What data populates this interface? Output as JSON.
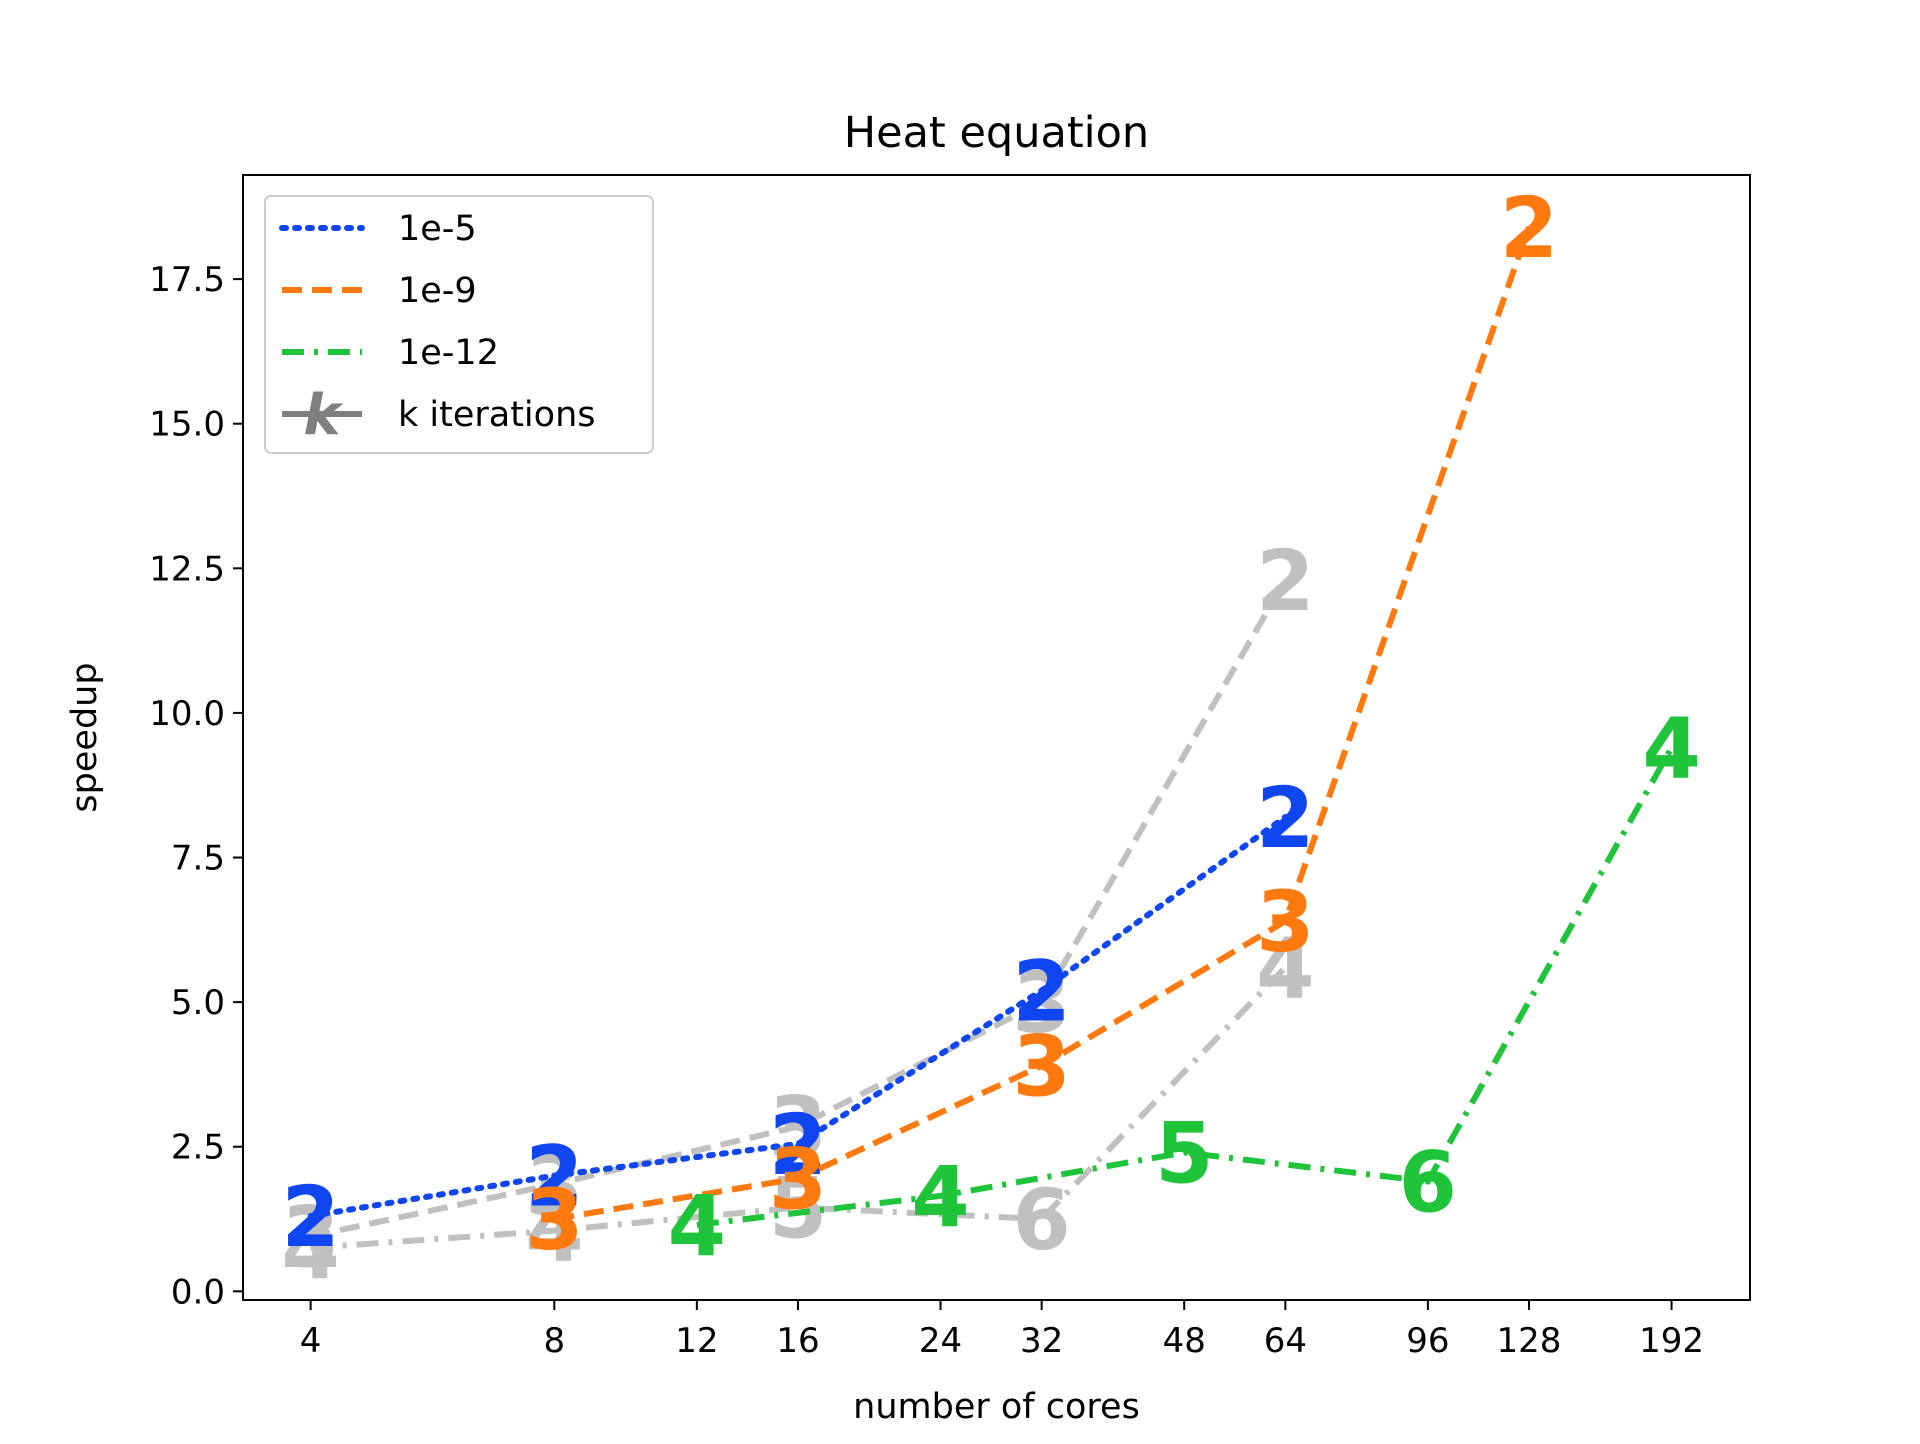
{
  "chart_data": {
    "type": "line",
    "title": "Heat equation",
    "xlabel": "number of cores",
    "ylabel": "speedup",
    "x_scale": "log2",
    "xlim": [
      3.3,
      240
    ],
    "ylim": [
      -0.15,
      19.3
    ],
    "x_ticks": [
      4,
      8,
      12,
      16,
      24,
      32,
      48,
      64,
      96,
      128,
      192
    ],
    "y_ticks": [
      0.0,
      2.5,
      5.0,
      7.5,
      10.0,
      12.5,
      15.0,
      17.5
    ],
    "y_tick_labels": [
      "0.0",
      "2.5",
      "5.0",
      "7.5",
      "10.0",
      "12.5",
      "15.0",
      "17.5"
    ],
    "grid": false,
    "legend_position": "top-left",
    "legend": [
      {
        "label": "1e-5",
        "style": "dotted",
        "color": "#1046f0"
      },
      {
        "label": "1e-9",
        "style": "dashed",
        "color": "#ff7a0e"
      },
      {
        "label": "1e-12",
        "style": "dashdot",
        "color": "#1fc43a"
      },
      {
        "label": "k iterations",
        "style": "solid",
        "color": "#7f7f7f",
        "marker": "k"
      }
    ],
    "series": [
      {
        "name": "1e-5",
        "style": "dotted",
        "color": "#1046f0",
        "x": [
          4,
          8,
          16,
          32,
          64
        ],
        "y": [
          1.3,
          2.0,
          2.55,
          5.2,
          8.2
        ],
        "labels": [
          "2",
          "2",
          "2",
          "2",
          "2"
        ]
      },
      {
        "name": "1e-9",
        "style": "dashed",
        "color": "#ff7a0e",
        "x": [
          8,
          16,
          32,
          64,
          128
        ],
        "y": [
          1.25,
          1.95,
          3.9,
          6.4,
          18.4
        ],
        "labels": [
          "3",
          "3",
          "3",
          "3",
          "2"
        ]
      },
      {
        "name": "1e-12",
        "style": "dashdot",
        "color": "#1fc43a",
        "x": [
          12,
          24,
          48,
          96,
          192
        ],
        "y": [
          1.15,
          1.65,
          2.4,
          1.9,
          9.4
        ],
        "labels": [
          "4",
          "4",
          "5",
          "6",
          "4"
        ]
      },
      {
        "name": "",
        "style": "dashed",
        "color": "#c0c0c0",
        "x": [
          4,
          8,
          16,
          32,
          64
        ],
        "y": [
          0.95,
          1.85,
          2.85,
          5.0,
          12.3
        ],
        "labels": [
          "3",
          "3",
          "3",
          "3",
          "2"
        ]
      },
      {
        "name": "",
        "style": "dashdot",
        "color": "#c0c0c0",
        "x": [
          4,
          8,
          16,
          32,
          64
        ],
        "y": [
          0.75,
          1.05,
          1.45,
          1.25,
          5.6
        ],
        "labels": [
          "4",
          "4",
          "5",
          "6",
          "4"
        ]
      }
    ]
  }
}
